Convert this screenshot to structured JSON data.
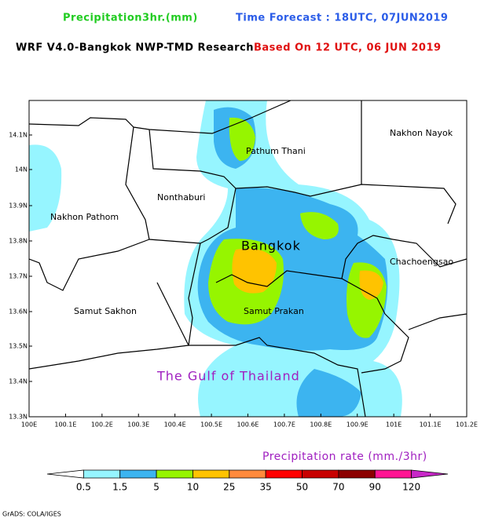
{
  "header": {
    "title": "Precipitation3hr.(mm)",
    "forecast": "Time Forecast : 18UTC, 07JUN2019"
  },
  "subheader": {
    "model": "WRF V4.0-Bangkok NWP-TMD Research",
    "based_on": "Based On 12 UTC, 06 JUN 2019"
  },
  "map": {
    "places": [
      "Pathum Thani",
      "Nakhon Nayok",
      "Nonthaburi",
      "Nakhon Pathom",
      "Bangkok",
      "Chachoengsao",
      "Samut Prakan",
      "Samut Sakhon",
      "The Gulf of Thailand"
    ],
    "lon_ticks": [
      "100E",
      "100.1E",
      "100.2E",
      "100.3E",
      "100.4E",
      "100.5E",
      "100.6E",
      "100.7E",
      "100.8E",
      "100.9E",
      "101E",
      "101.1E",
      "101.2E"
    ],
    "lat_ticks": [
      "14.1N",
      "14N",
      "13.9N",
      "13.8N",
      "13.7N",
      "13.6N",
      "13.5N",
      "13.4N",
      "13.3N"
    ]
  },
  "colorbar": {
    "title": "Precipitation rate (mm./3hr)",
    "labels": [
      "0.5",
      "1.5",
      "5",
      "10",
      "25",
      "35",
      "50",
      "70",
      "90",
      "120"
    ],
    "colors": [
      "#ffffff",
      "#96f5ff",
      "#3cb4f0",
      "#96f500",
      "#ffc300",
      "#ff8a3c",
      "#ff0000",
      "#c80000",
      "#8c0000",
      "#ff1493",
      "#c828c8"
    ]
  },
  "footer": "GrADS: COLA/IGES"
}
